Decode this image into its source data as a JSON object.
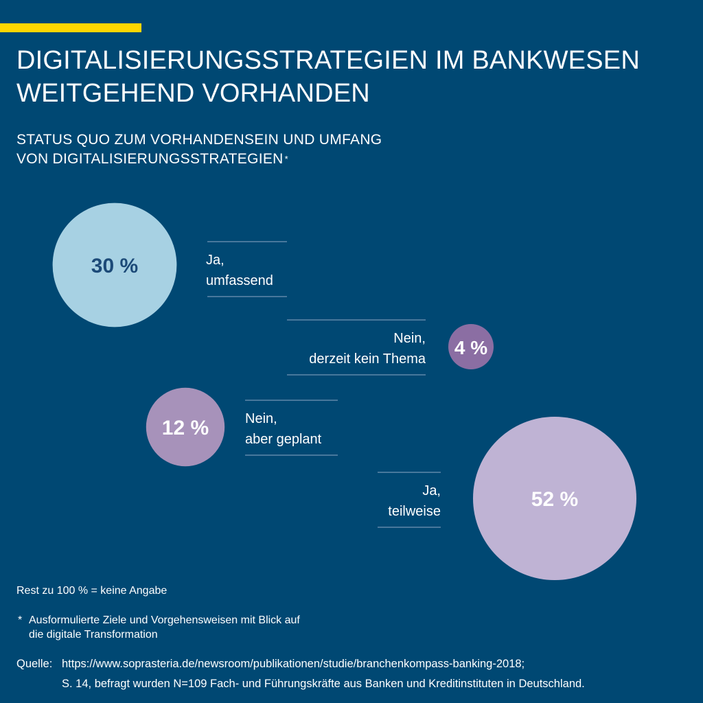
{
  "title": {
    "line1": "DIGITALISIERUNGSSTRATEGIEN IM BANKWESEN",
    "line2": "WEITGEHEND VORHANDEN"
  },
  "subtitle": {
    "line1": "STATUS QUO ZUM VORHANDENSEIN UND UMFANG",
    "line2": "VON DIGITALISIERUNGSSTRATEGIEN",
    "marker": "*"
  },
  "colors": {
    "background": "#004873",
    "accent": "#ffd600",
    "ja_umfassend": "#a7d1e3",
    "nein_kein_thema": "#8b6ea3",
    "nein_geplant": "#a792ba",
    "ja_teilweise": "#bfb3d4",
    "label_dark": "#1c4a78"
  },
  "chart_data": {
    "type": "bubble",
    "title": "STATUS QUO ZUM VORHANDENSEIN UND UMFANG VON DIGITALISIERUNGSSTRATEGIEN",
    "unit": "%",
    "series": [
      {
        "id": "ja_umfassend",
        "label_line1": "Ja,",
        "label_line2": "umfassend",
        "value": 30,
        "value_label": "30 %"
      },
      {
        "id": "nein_kein_thema",
        "label_line1": "Nein,",
        "label_line2": "derzeit kein Thema",
        "value": 4,
        "value_label": "4 %"
      },
      {
        "id": "nein_geplant",
        "label_line1": "Nein,",
        "label_line2": "aber geplant",
        "value": 12,
        "value_label": "12 %"
      },
      {
        "id": "ja_teilweise",
        "label_line1": "Ja,",
        "label_line2": "teilweise",
        "value": 52,
        "value_label": "52 %"
      }
    ]
  },
  "footer": {
    "note": "Rest zu 100 % = keine Angabe",
    "footnote_marker": "*",
    "footnote_line1": "Ausformulierte Ziele und Vorgehensweisen mit Blick auf",
    "footnote_line2": "die digitale Transformation",
    "source_prefix": "Quelle:",
    "source_line1": "https://www.soprasteria.de/newsroom/publikationen/studie/branchenkompass-banking-2018;",
    "source_line2": "S. 14, befragt wurden N=109 Fach- und Führungskräfte aus Banken und Kreditinstituten in Deutschland."
  }
}
